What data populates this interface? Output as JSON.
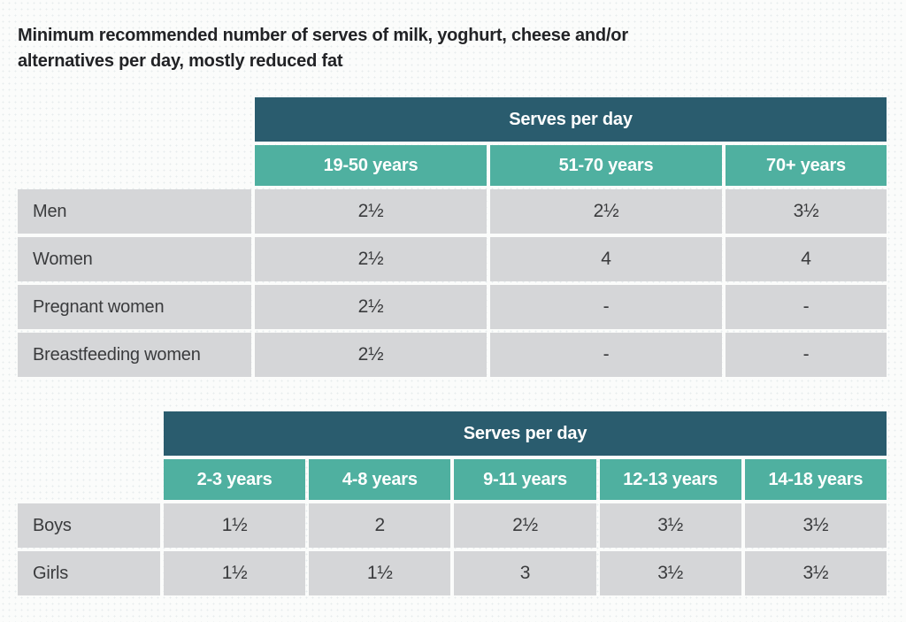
{
  "page": {
    "title_line1": "Minimum recommended number of serves of milk, yoghurt, cheese and/or",
    "title_line2": "alternatives per day, mostly reduced fat"
  },
  "colors": {
    "header_dark_teal": "#2a5c6e",
    "header_light_teal": "#4fb0a0",
    "cell_gray": "#d5d6d8",
    "title_text": "#222326",
    "header_text": "#ffffff"
  },
  "tables": [
    {
      "header": "Serves per day",
      "columns": [
        "19-50 years",
        "51-70 years",
        "70+ years"
      ],
      "rows": [
        {
          "label": "Men",
          "values": [
            "2½",
            "2½",
            "3½"
          ]
        },
        {
          "label": "Women",
          "values": [
            "2½",
            "4",
            "4"
          ]
        },
        {
          "label": "Pregnant women",
          "values": [
            "2½",
            "-",
            "-"
          ]
        },
        {
          "label": "Breastfeeding women",
          "values": [
            "2½",
            "-",
            "-"
          ]
        }
      ]
    },
    {
      "header": "Serves per day",
      "columns": [
        "2-3 years",
        "4-8 years",
        "9-11 years",
        "12-13 years",
        "14-18 years"
      ],
      "rows": [
        {
          "label": "Boys",
          "values": [
            "1½",
            "2",
            "2½",
            "3½",
            "3½"
          ]
        },
        {
          "label": "Girls",
          "values": [
            "1½",
            "1½",
            "3",
            "3½",
            "3½"
          ]
        }
      ]
    }
  ]
}
